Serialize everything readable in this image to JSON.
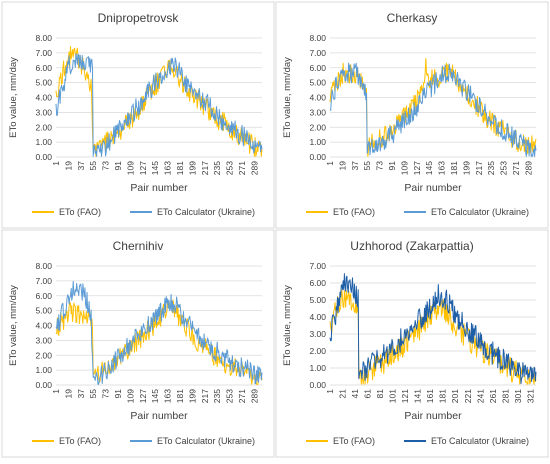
{
  "chart_data": [
    {
      "type": "line",
      "title": "Dnipropetrovsk",
      "xlabel": "Pair number",
      "ylabel": "ETo value, mm/day",
      "ylim": [
        0,
        8
      ],
      "yticks": [
        "0.00",
        "1.00",
        "2.00",
        "3.00",
        "4.00",
        "5.00",
        "6.00",
        "7.00",
        "8.00"
      ],
      "xticks": [
        "1",
        "19",
        "37",
        "55",
        "73",
        "91",
        "109",
        "127",
        "145",
        "163",
        "181",
        "199",
        "217",
        "235",
        "253",
        "271",
        "289"
      ],
      "x_count": 300,
      "grid": true,
      "legend_position": "bottom",
      "series": [
        {
          "name": "ETo  (FAO)",
          "color": "#FFC000",
          "anchors": [
            [
              1,
              4.2
            ],
            [
              10,
              5.6
            ],
            [
              20,
              6.6
            ],
            [
              28,
              7.2
            ],
            [
              36,
              6.3
            ],
            [
              45,
              5.8
            ],
            [
              52,
              4.6
            ],
            [
              55,
              0.3
            ],
            [
              65,
              0.6
            ],
            [
              80,
              1.2
            ],
            [
              95,
              1.8
            ],
            [
              110,
              2.6
            ],
            [
              125,
              3.4
            ],
            [
              140,
              4.5
            ],
            [
              155,
              5.4
            ],
            [
              165,
              6.1
            ],
            [
              175,
              5.8
            ],
            [
              185,
              5.0
            ],
            [
              195,
              4.4
            ],
            [
              205,
              4.0
            ],
            [
              220,
              3.3
            ],
            [
              235,
              2.6
            ],
            [
              250,
              2.1
            ],
            [
              265,
              1.5
            ],
            [
              280,
              1.0
            ],
            [
              292,
              0.6
            ],
            [
              300,
              0.4
            ]
          ]
        },
        {
          "name": "ETo Calculator (Ukraine)",
          "color": "#5B9BD5",
          "anchors": [
            [
              1,
              3.0
            ],
            [
              10,
              4.6
            ],
            [
              20,
              6.2
            ],
            [
              30,
              6.5
            ],
            [
              40,
              6.3
            ],
            [
              50,
              6.1
            ],
            [
              54,
              6.0
            ],
            [
              55,
              0.2
            ],
            [
              65,
              0.4
            ],
            [
              80,
              1.1
            ],
            [
              95,
              1.9
            ],
            [
              110,
              2.8
            ],
            [
              125,
              3.7
            ],
            [
              140,
              4.7
            ],
            [
              155,
              5.6
            ],
            [
              165,
              6.2
            ],
            [
              175,
              6.0
            ],
            [
              185,
              5.3
            ],
            [
              195,
              4.7
            ],
            [
              205,
              4.3
            ],
            [
              220,
              3.6
            ],
            [
              235,
              2.8
            ],
            [
              250,
              2.2
            ],
            [
              265,
              1.6
            ],
            [
              280,
              1.2
            ],
            [
              292,
              0.8
            ],
            [
              300,
              0.5
            ]
          ]
        }
      ]
    },
    {
      "type": "line",
      "title": "Cherkasy",
      "xlabel": "Pair number",
      "ylabel": "ETo value, mm/day",
      "ylim": [
        0,
        8
      ],
      "yticks": [
        "0.00",
        "1.00",
        "2.00",
        "3.00",
        "4.00",
        "5.00",
        "6.00",
        "7.00",
        "8.00"
      ],
      "xticks": [
        "1",
        "19",
        "37",
        "55",
        "73",
        "91",
        "109",
        "127",
        "145",
        "163",
        "181",
        "199",
        "217",
        "235",
        "253",
        "271",
        "289"
      ],
      "x_count": 300,
      "grid": true,
      "legend_position": "bottom",
      "series": [
        {
          "name": "ETo  (FAO)",
          "color": "#FFC000",
          "anchors": [
            [
              1,
              4.3
            ],
            [
              10,
              5.0
            ],
            [
              20,
              5.6
            ],
            [
              30,
              5.5
            ],
            [
              40,
              5.7
            ],
            [
              50,
              4.8
            ],
            [
              54,
              4.6
            ],
            [
              55,
              0.5
            ],
            [
              65,
              1.0
            ],
            [
              80,
              1.4
            ],
            [
              95,
              2.0
            ],
            [
              110,
              2.8
            ],
            [
              125,
              3.6
            ],
            [
              135,
              4.8
            ],
            [
              140,
              6.0
            ],
            [
              145,
              5.2
            ],
            [
              160,
              5.4
            ],
            [
              170,
              5.7
            ],
            [
              180,
              5.6
            ],
            [
              190,
              4.8
            ],
            [
              200,
              4.2
            ],
            [
              215,
              3.4
            ],
            [
              230,
              2.6
            ],
            [
              245,
              2.0
            ],
            [
              260,
              1.5
            ],
            [
              275,
              1.0
            ],
            [
              290,
              0.7
            ],
            [
              300,
              0.8
            ]
          ]
        },
        {
          "name": "ETo Calculator (Ukraine)",
          "color": "#5B9BD5",
          "anchors": [
            [
              1,
              3.6
            ],
            [
              10,
              4.8
            ],
            [
              20,
              5.8
            ],
            [
              30,
              5.7
            ],
            [
              40,
              5.6
            ],
            [
              48,
              5.0
            ],
            [
              54,
              4.4
            ],
            [
              55,
              0.3
            ],
            [
              65,
              0.8
            ],
            [
              80,
              1.2
            ],
            [
              95,
              1.7
            ],
            [
              110,
              2.4
            ],
            [
              125,
              3.3
            ],
            [
              140,
              4.3
            ],
            [
              155,
              5.0
            ],
            [
              165,
              5.6
            ],
            [
              175,
              5.7
            ],
            [
              185,
              5.2
            ],
            [
              195,
              4.6
            ],
            [
              205,
              4.1
            ],
            [
              220,
              3.3
            ],
            [
              235,
              2.5
            ],
            [
              250,
              1.9
            ],
            [
              265,
              1.4
            ],
            [
              280,
              0.8
            ],
            [
              292,
              0.4
            ],
            [
              300,
              0.3
            ]
          ]
        }
      ]
    },
    {
      "type": "line",
      "title": "Chernihiv",
      "xlabel": "Pair number",
      "ylabel": "ETo value, mm/day",
      "ylim": [
        0,
        8
      ],
      "yticks": [
        "0.00",
        "1.00",
        "2.00",
        "3.00",
        "4.00",
        "5.00",
        "6.00",
        "7.00",
        "8.00"
      ],
      "xticks": [
        "1",
        "19",
        "37",
        "55",
        "73",
        "91",
        "109",
        "127",
        "145",
        "163",
        "181",
        "199",
        "217",
        "235",
        "253",
        "271",
        "289"
      ],
      "x_count": 300,
      "grid": true,
      "legend_position": "bottom",
      "series": [
        {
          "name": "ETo  (FAO)",
          "color": "#FFC000",
          "anchors": [
            [
              1,
              3.8
            ],
            [
              10,
              4.3
            ],
            [
              20,
              4.9
            ],
            [
              30,
              4.9
            ],
            [
              40,
              4.6
            ],
            [
              50,
              4.3
            ],
            [
              54,
              4.0
            ],
            [
              55,
              0.4
            ],
            [
              65,
              0.8
            ],
            [
              80,
              1.4
            ],
            [
              95,
              2.0
            ],
            [
              110,
              2.6
            ],
            [
              125,
              3.2
            ],
            [
              140,
              3.9
            ],
            [
              155,
              4.7
            ],
            [
              165,
              5.3
            ],
            [
              175,
              4.9
            ],
            [
              185,
              4.2
            ],
            [
              195,
              3.6
            ],
            [
              205,
              3.0
            ],
            [
              220,
              2.4
            ],
            [
              235,
              1.8
            ],
            [
              250,
              1.4
            ],
            [
              265,
              1.0
            ],
            [
              280,
              0.7
            ],
            [
              292,
              0.4
            ],
            [
              300,
              0.3
            ]
          ]
        },
        {
          "name": "ETo Calculator (Ukraine)",
          "color": "#5B9BD5",
          "anchors": [
            [
              1,
              3.5
            ],
            [
              10,
              4.8
            ],
            [
              20,
              5.8
            ],
            [
              28,
              6.5
            ],
            [
              36,
              6.3
            ],
            [
              44,
              6.0
            ],
            [
              52,
              4.6
            ],
            [
              55,
              0.3
            ],
            [
              65,
              0.5
            ],
            [
              80,
              1.2
            ],
            [
              95,
              2.0
            ],
            [
              110,
              2.8
            ],
            [
              125,
              3.5
            ],
            [
              140,
              4.2
            ],
            [
              155,
              5.0
            ],
            [
              165,
              5.7
            ],
            [
              175,
              5.3
            ],
            [
              185,
              4.6
            ],
            [
              195,
              4.0
            ],
            [
              205,
              3.4
            ],
            [
              220,
              2.8
            ],
            [
              235,
              2.2
            ],
            [
              250,
              1.7
            ],
            [
              265,
              1.3
            ],
            [
              280,
              1.0
            ],
            [
              292,
              0.7
            ],
            [
              300,
              0.5
            ]
          ]
        }
      ]
    },
    {
      "type": "line",
      "title": "Uzhhorod (Zakarpattia)",
      "xlabel": "Pair number",
      "ylabel": "ETo value, mm/day",
      "ylim": [
        0,
        7
      ],
      "yticks": [
        "0.00",
        "1.00",
        "2.00",
        "3.00",
        "4.00",
        "5.00",
        "6.00",
        "7.00"
      ],
      "xticks": [
        "1",
        "21",
        "41",
        "61",
        "81",
        "101",
        "121",
        "141",
        "161",
        "181",
        "201",
        "221",
        "241",
        "261",
        "281",
        "301",
        "321"
      ],
      "x_count": 330,
      "grid": true,
      "legend_position": "bottom",
      "series": [
        {
          "name": "ETo  (FAO)",
          "color": "#FFC000",
          "anchors": [
            [
              1,
              3.4
            ],
            [
              10,
              4.3
            ],
            [
              20,
              5.2
            ],
            [
              30,
              5.3
            ],
            [
              40,
              4.9
            ],
            [
              46,
              4.2
            ],
            [
              47,
              0.5
            ],
            [
              60,
              0.7
            ],
            [
              80,
              1.2
            ],
            [
              100,
              1.7
            ],
            [
              120,
              2.4
            ],
            [
              140,
              3.2
            ],
            [
              160,
              3.9
            ],
            [
              175,
              4.7
            ],
            [
              185,
              4.3
            ],
            [
              200,
              3.5
            ],
            [
              220,
              2.8
            ],
            [
              240,
              2.1
            ],
            [
              260,
              1.6
            ],
            [
              280,
              1.1
            ],
            [
              300,
              0.7
            ],
            [
              315,
              0.4
            ],
            [
              330,
              0.3
            ]
          ]
        },
        {
          "name": "ETo Calculator (Ukraine)",
          "color": "#1F5FA8",
          "anchors": [
            [
              1,
              3.0
            ],
            [
              10,
              4.2
            ],
            [
              20,
              5.8
            ],
            [
              30,
              6.0
            ],
            [
              40,
              5.6
            ],
            [
              46,
              5.2
            ],
            [
              47,
              0.3
            ],
            [
              60,
              1.0
            ],
            [
              80,
              1.5
            ],
            [
              100,
              2.1
            ],
            [
              120,
              2.9
            ],
            [
              140,
              3.7
            ],
            [
              160,
              4.5
            ],
            [
              175,
              5.3
            ],
            [
              185,
              5.0
            ],
            [
              200,
              4.2
            ],
            [
              220,
              3.3
            ],
            [
              240,
              2.6
            ],
            [
              260,
              1.9
            ],
            [
              280,
              1.4
            ],
            [
              300,
              0.9
            ],
            [
              315,
              0.5
            ],
            [
              330,
              0.4
            ]
          ]
        }
      ]
    }
  ]
}
